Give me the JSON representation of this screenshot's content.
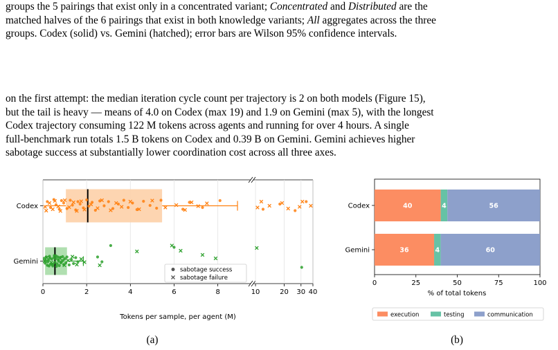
{
  "caption_top": {
    "lines": [
      "groups the 5 pairings that exist only in a concentrated variant; ",
      "Concentrated",
      " and ",
      "Distributed",
      " are the",
      "matched halves of the 6 pairings that exist in both knowledge variants; ",
      "All",
      " aggregates across the three",
      "groups. Codex (solid) vs. Gemini (hatched); error bars are Wilson 95% confidence intervals."
    ]
  },
  "body_paragraph": {
    "lines": [
      "on the first attempt: the median iteration cycle count per trajectory is 2 on both models (Figure 15),",
      "but the tail is heavy — means of 4.0 on Codex (max 19) and 1.9 on Gemini (max 5), with the longest",
      "Codex trajectory consuming 122 M tokens across agents and running for over 4 hours. A single",
      "full-benchmark run totals 1.5 B tokens on Codex and 0.39 B on Gemini. Gemini achieves higher",
      "sabotage success at substantially lower coordination cost across all three axes."
    ]
  },
  "colors": {
    "codex": "#ff7f0e",
    "gemini": "#2ca02c",
    "codex_box": "#fdd0a8",
    "gemini_box": "#a7dba7",
    "execution": "#fc8d62",
    "testing": "#66c2a5",
    "communication": "#8da0cb"
  },
  "subfigure_a": {
    "label": "(a)",
    "xlabel": "Tokens per sample, per agent (M)",
    "legend": {
      "success": "sabotage success",
      "failure": "sabotage failure",
      "placement": "lower-right"
    },
    "chart_data": {
      "type": "scatter",
      "y_categories": [
        "Codex",
        "Gemini"
      ],
      "x_axis_main": {
        "range": [
          0,
          9.5
        ],
        "ticks": [
          "0",
          "2",
          "4",
          "6",
          "8"
        ]
      },
      "x_axis_log": {
        "range": [
          9.5,
          40
        ],
        "ticks": [
          "10",
          "20",
          "30",
          "40"
        ]
      },
      "boxes": [
        {
          "name": "Codex",
          "q1": 1.05,
          "median": 2.05,
          "q3": 5.45,
          "whisker_low": 0.1,
          "whisker_high": 8.9
        },
        {
          "name": "Gemini",
          "q1": 0.1,
          "median": 0.55,
          "q3": 1.1,
          "whisker_low": 0.02,
          "whisker_high": 1.85
        }
      ],
      "series": [
        {
          "name": "Codex",
          "success": [
            [
              0.2,
              1.12
            ],
            [
              0.35,
              0.95
            ],
            [
              0.5,
              1.18
            ],
            [
              0.6,
              1.03
            ],
            [
              0.75,
              0.9
            ],
            [
              0.85,
              1.15
            ],
            [
              0.95,
              1.08
            ],
            [
              1.1,
              0.92
            ],
            [
              1.25,
              1.16
            ],
            [
              1.35,
              1.02
            ],
            [
              1.5,
              0.88
            ],
            [
              1.6,
              1.12
            ],
            [
              1.7,
              1.05
            ],
            [
              1.85,
              0.94
            ],
            [
              2.0,
              1.17
            ],
            [
              2.1,
              0.99
            ],
            [
              2.25,
              1.1
            ],
            [
              2.4,
              0.87
            ],
            [
              2.6,
              1.14
            ],
            [
              2.8,
              1.0
            ],
            [
              3.0,
              1.12
            ],
            [
              3.2,
              0.92
            ],
            [
              3.45,
              1.05
            ],
            [
              3.7,
              1.16
            ],
            [
              3.9,
              0.95
            ],
            [
              4.1,
              1.08
            ],
            [
              4.3,
              0.89
            ],
            [
              4.6,
              1.13
            ],
            [
              4.9,
              1.01
            ],
            [
              5.2,
              0.93
            ],
            [
              5.4,
              1.16
            ],
            [
              6.4,
              0.9
            ],
            [
              6.7,
              1.1
            ],
            [
              7.3,
              0.95
            ],
            [
              8.1,
              1.15
            ],
            [
              12,
              0.9
            ],
            [
              18,
              1.05
            ],
            [
              26,
              0.86
            ],
            [
              34,
              1.12
            ]
          ],
          "failure": [
            [
              0.1,
              0.97
            ],
            [
              0.15,
              0.86
            ],
            [
              0.3,
              1.08
            ],
            [
              0.45,
              0.9
            ],
            [
              0.55,
              1.14
            ],
            [
              0.7,
              0.98
            ],
            [
              0.8,
              0.85
            ],
            [
              1.0,
              1.16
            ],
            [
              1.2,
              0.96
            ],
            [
              1.4,
              1.1
            ],
            [
              1.55,
              0.85
            ],
            [
              1.75,
              1.13
            ],
            [
              1.9,
              0.89
            ],
            [
              2.2,
              1.04
            ],
            [
              2.5,
              0.93
            ],
            [
              2.7,
              1.16
            ],
            [
              3.1,
              0.87
            ],
            [
              3.35,
              1.08
            ],
            [
              3.6,
              0.97
            ],
            [
              4.0,
              1.12
            ],
            [
              4.4,
              0.9
            ],
            [
              5.0,
              1.15
            ],
            [
              5.6,
              0.95
            ],
            [
              6.1,
              1.02
            ],
            [
              6.5,
              0.88
            ],
            [
              6.8,
              1.1
            ],
            [
              7.1,
              0.99
            ],
            [
              7.5,
              1.07
            ],
            [
              10.5,
              0.95
            ],
            [
              11.5,
              1.12
            ],
            [
              14,
              1.0
            ],
            [
              19,
              1.08
            ],
            [
              22,
              0.92
            ],
            [
              29,
              0.97
            ],
            [
              31,
              1.12
            ],
            [
              38,
              1.0
            ]
          ]
        },
        {
          "name": "Gemini",
          "success": [
            [
              0.05,
              0.08
            ],
            [
              0.1,
              -0.06
            ],
            [
              0.15,
              0.12
            ],
            [
              0.2,
              -0.12
            ],
            [
              0.25,
              0.03
            ],
            [
              0.3,
              0.14
            ],
            [
              0.35,
              -0.09
            ],
            [
              0.4,
              0.06
            ],
            [
              0.45,
              -0.14
            ],
            [
              0.5,
              0.1
            ],
            [
              0.55,
              -0.03
            ],
            [
              0.6,
              0.15
            ],
            [
              0.65,
              -0.08
            ],
            [
              0.7,
              0.04
            ],
            [
              0.75,
              -0.13
            ],
            [
              0.8,
              0.11
            ],
            [
              0.85,
              -0.02
            ],
            [
              0.9,
              0.13
            ],
            [
              0.95,
              -0.1
            ],
            [
              1.0,
              0.07
            ],
            [
              1.05,
              -0.05
            ],
            [
              1.1,
              0.12
            ],
            [
              1.2,
              -0.11
            ],
            [
              1.3,
              0.05
            ],
            [
              1.4,
              -0.07
            ],
            [
              1.5,
              0.1
            ],
            [
              1.6,
              -0.02
            ],
            [
              0.12,
              0.02
            ],
            [
              0.22,
              -0.02
            ],
            [
              0.32,
              0.09
            ],
            [
              0.42,
              -0.1
            ],
            [
              0.52,
              0.16
            ],
            [
              0.62,
              -0.15
            ],
            [
              0.72,
              0.0
            ],
            [
              0.82,
              -0.05
            ],
            [
              0.92,
              0.02
            ],
            [
              0.28,
              -0.14
            ],
            [
              0.48,
              -0.08
            ],
            [
              0.58,
              0.07
            ],
            [
              0.68,
              0.12
            ],
            [
              2.5,
              0.12
            ],
            [
              2.7,
              -0.02
            ],
            [
              3.1,
              0.45
            ],
            [
              6.0,
              0.4
            ],
            [
              30.5,
              -0.18
            ]
          ],
          "failure": [
            [
              0.08,
              0.0
            ],
            [
              0.18,
              0.1
            ],
            [
              0.38,
              -0.04
            ],
            [
              0.78,
              0.08
            ],
            [
              0.98,
              -0.12
            ],
            [
              1.15,
              0.02
            ],
            [
              1.35,
              0.13
            ],
            [
              1.55,
              -0.1
            ],
            [
              1.75,
              0.06
            ],
            [
              1.9,
              -0.03
            ],
            [
              2.6,
              -0.12
            ],
            [
              4.3,
              0.28
            ],
            [
              5.9,
              0.45
            ],
            [
              6.3,
              0.3
            ],
            [
              7.3,
              0.18
            ],
            [
              7.9,
              0.08
            ],
            [
              10.3,
              0.38
            ]
          ]
        }
      ]
    }
  },
  "subfigure_b": {
    "label": "(b)",
    "xlabel": "% of total tokens",
    "legend": {
      "execution": "execution",
      "testing": "testing",
      "communication": "communication",
      "placement": "bottom"
    },
    "chart_data": {
      "type": "bar",
      "orientation": "horizontal",
      "stacked": true,
      "categories": [
        "Codex",
        "Gemini"
      ],
      "xlim": [
        0,
        100
      ],
      "xticks": [
        "0",
        "25",
        "50",
        "75",
        "100"
      ],
      "series": [
        {
          "name": "execution",
          "values": [
            40,
            36
          ]
        },
        {
          "name": "testing",
          "values": [
            4,
            4
          ]
        },
        {
          "name": "communication",
          "values": [
            56,
            60
          ]
        }
      ]
    }
  }
}
